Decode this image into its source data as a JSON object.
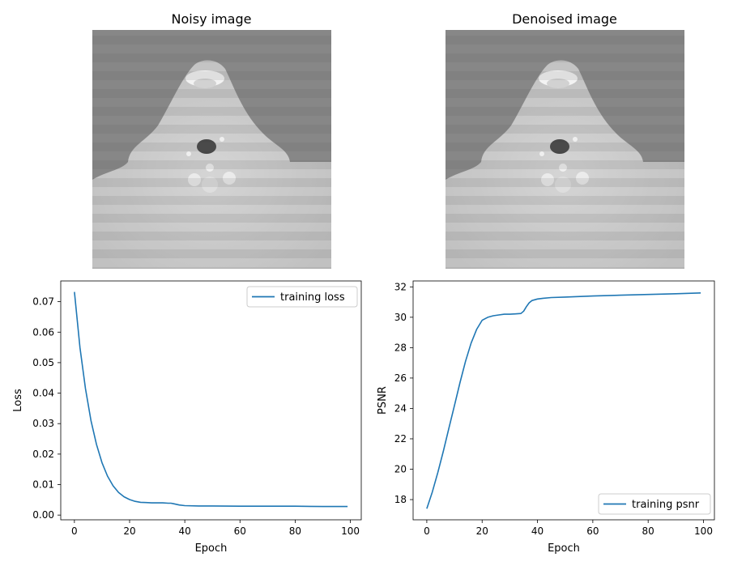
{
  "figure": {
    "titles": [
      "Noisy image",
      "Denoised image"
    ]
  },
  "colors": {
    "series": "#1f77b4",
    "axis": "#000000"
  },
  "chart_data": [
    {
      "type": "line",
      "xlabel": "Epoch",
      "ylabel": "Loss",
      "xlim": [
        -4.95,
        103.95
      ],
      "ylim": [
        -0.00155,
        0.0768
      ],
      "xticks": [
        0,
        20,
        40,
        60,
        80,
        100
      ],
      "yticks": [
        0.0,
        0.01,
        0.02,
        0.03,
        0.04,
        0.05,
        0.06,
        0.07
      ],
      "ytick_labels": [
        "0.00",
        "0.01",
        "0.02",
        "0.03",
        "0.04",
        "0.05",
        "0.06",
        "0.07"
      ],
      "legend": "top-right",
      "series": [
        {
          "name": "training loss",
          "x": [
            0,
            2,
            4,
            6,
            8,
            10,
            12,
            14,
            16,
            18,
            20,
            22,
            24,
            26,
            28,
            30,
            32,
            34,
            35,
            36,
            38,
            40,
            45,
            50,
            60,
            70,
            80,
            90,
            99
          ],
          "values": [
            0.0732,
            0.055,
            0.0415,
            0.031,
            0.0232,
            0.0172,
            0.0128,
            0.0096,
            0.0074,
            0.006,
            0.0051,
            0.0045,
            0.0042,
            0.0041,
            0.004,
            0.004,
            0.004,
            0.0039,
            0.0039,
            0.0037,
            0.0033,
            0.0031,
            0.003,
            0.003,
            0.0029,
            0.0029,
            0.0029,
            0.0028,
            0.0028
          ]
        }
      ]
    },
    {
      "type": "line",
      "xlabel": "Epoch",
      "ylabel": "PSNR",
      "xlim": [
        -4.95,
        103.95
      ],
      "ylim": [
        16.67,
        32.39
      ],
      "xticks": [
        0,
        20,
        40,
        60,
        80,
        100
      ],
      "yticks": [
        18,
        20,
        22,
        24,
        26,
        28,
        30,
        32
      ],
      "ytick_labels": [
        "18",
        "20",
        "22",
        "24",
        "26",
        "28",
        "30",
        "32"
      ],
      "legend": "bottom-right",
      "series": [
        {
          "name": "training psnr",
          "x": [
            0,
            2,
            4,
            6,
            8,
            10,
            12,
            14,
            16,
            18,
            20,
            22,
            24,
            26,
            28,
            30,
            32,
            34,
            35,
            36,
            37,
            38,
            40,
            42,
            45,
            50,
            60,
            70,
            80,
            90,
            99
          ],
          "values": [
            17.4,
            18.5,
            19.8,
            21.2,
            22.7,
            24.2,
            25.7,
            27.1,
            28.3,
            29.2,
            29.8,
            30.0,
            30.1,
            30.15,
            30.2,
            30.2,
            30.22,
            30.25,
            30.4,
            30.7,
            30.95,
            31.1,
            31.2,
            31.25,
            31.3,
            31.33,
            31.4,
            31.45,
            31.5,
            31.55,
            31.6
          ]
        }
      ]
    }
  ]
}
